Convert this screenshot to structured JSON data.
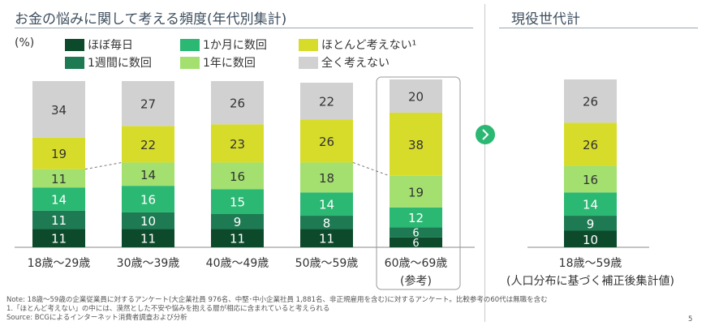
{
  "title": "お金の悩みに関して考える頻度(年代別集計)",
  "right_title": "現役世代計",
  "unit_label": "(%)",
  "notes": [
    "Note: 18歳～59歳の企業従業員に対するアンケート(大企業社員 976名、中堅･中小企業社員 1,881名、非正規雇用を含む)に対するアンケート。比較参考の60代は無職を含む",
    "1.「ほとんど考えない」の中には、漠然とした不安や悩みを抱える層が相応に含まれていると考えられる",
    "Source: BCGによるインターネット消費者調査および分析"
  ],
  "page_number": "5",
  "chart_data": {
    "type": "bar",
    "stacked": true,
    "ylim": [
      0,
      100
    ],
    "legend_position": "top",
    "categories": [
      "18歳～29歳",
      "30歳～39歳",
      "40歳～49歳",
      "50歳～59歳",
      "60歳～69歳",
      "18歳～59歳"
    ],
    "category_sublabels": [
      "",
      "",
      "",
      "",
      "(参考)",
      "(人口分布に基づく補正後集計値)"
    ],
    "series": [
      {
        "name": "ほぼ毎日",
        "color": "#0d4a2c",
        "values": [
          11,
          11,
          11,
          11,
          6,
          10
        ]
      },
      {
        "name": "1週間に数回",
        "color": "#1e7a52",
        "values": [
          11,
          10,
          9,
          8,
          6,
          9
        ]
      },
      {
        "name": "1か月に数回",
        "color": "#2bb873",
        "values": [
          14,
          16,
          15,
          14,
          12,
          14
        ]
      },
      {
        "name": "1年に数回",
        "color": "#a3e070",
        "values": [
          11,
          14,
          16,
          18,
          19,
          16
        ]
      },
      {
        "name": "ほとんど考えない¹",
        "color": "#d7dc2b",
        "values": [
          19,
          22,
          23,
          26,
          38,
          26
        ]
      },
      {
        "name": "全く考えない",
        "color": "#d1d1d1",
        "values": [
          34,
          27,
          26,
          22,
          20,
          26
        ]
      }
    ]
  }
}
